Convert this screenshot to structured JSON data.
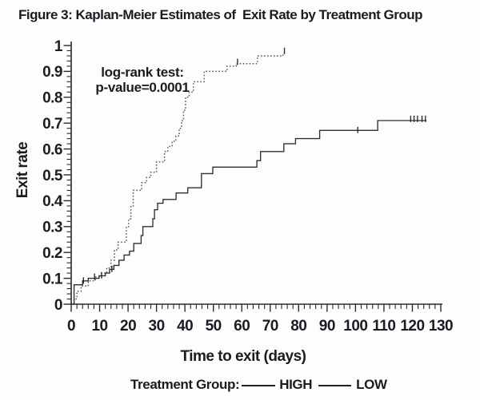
{
  "figure": {
    "title": "Figure 3: Kaplan-Meier Estimates of  Exit Rate by Treatment Group"
  },
  "annotation": {
    "line1": "log-rank test:",
    "line2": "p-value=0.0001"
  },
  "legend": {
    "label": "Treatment Group:",
    "items": [
      {
        "name": "HIGH"
      },
      {
        "name": "LOW"
      }
    ]
  },
  "colors": {
    "text": "#1b1b24",
    "axis": "#2a2a2e",
    "high_curve": "#585858",
    "low_curve": "#2e2e2e",
    "background": "#fdfdfd"
  },
  "chart_data": {
    "type": "line",
    "subtype": "kaplan-meier-step",
    "title": "Figure 3: Kaplan-Meier Estimates of Exit Rate by Treatment Group",
    "xlabel": "Time to exit (days)",
    "ylabel": "Exit rate",
    "xlim": [
      0,
      130
    ],
    "ylim": [
      0,
      1
    ],
    "x_ticks": [
      0,
      10,
      20,
      30,
      40,
      50,
      60,
      70,
      80,
      90,
      100,
      110,
      120,
      130
    ],
    "y_ticks": [
      0,
      0.1,
      0.2,
      0.3,
      0.4,
      0.5,
      0.6,
      0.7,
      0.8,
      0.9,
      1
    ],
    "x_minor_step": 2,
    "y_minor_step": 0.02,
    "grid": false,
    "legend_position": "bottom",
    "annotation": "log-rank test: p-value=0.0001",
    "series": [
      {
        "name": "HIGH",
        "style": "dotted",
        "points": [
          [
            0,
            0
          ],
          [
            1,
            0.02
          ],
          [
            2,
            0.05
          ],
          [
            3.5,
            0.07
          ],
          [
            6,
            0.09
          ],
          [
            8.5,
            0.105
          ],
          [
            10.5,
            0.12
          ],
          [
            12.5,
            0.14
          ],
          [
            14,
            0.17
          ],
          [
            15.2,
            0.21
          ],
          [
            16.5,
            0.24
          ],
          [
            19.4,
            0.3
          ],
          [
            20.2,
            0.33
          ],
          [
            21,
            0.38
          ],
          [
            21.8,
            0.44
          ],
          [
            24.8,
            0.47
          ],
          [
            26.5,
            0.49
          ],
          [
            28,
            0.51
          ],
          [
            30,
            0.55
          ],
          [
            32.8,
            0.59
          ],
          [
            34,
            0.61
          ],
          [
            35.5,
            0.63
          ],
          [
            36.8,
            0.65
          ],
          [
            38,
            0.68
          ],
          [
            38.8,
            0.71
          ],
          [
            39.5,
            0.75
          ],
          [
            40.2,
            0.8
          ],
          [
            41.5,
            0.82
          ],
          [
            43,
            0.86
          ],
          [
            46.8,
            0.9
          ],
          [
            54.8,
            0.92
          ],
          [
            58,
            0.93
          ],
          [
            65.5,
            0.96
          ],
          [
            74.5,
            0.97
          ]
        ],
        "end_x": 75.5,
        "censor_marks": [
          [
            58.5,
            0.935
          ],
          [
            75,
            0.978
          ]
        ]
      },
      {
        "name": "LOW",
        "style": "solid",
        "points": [
          [
            0,
            0
          ],
          [
            1,
            0.075
          ],
          [
            4,
            0.09
          ],
          [
            6,
            0.1
          ],
          [
            9.8,
            0.11
          ],
          [
            12,
            0.12
          ],
          [
            13.5,
            0.135
          ],
          [
            15,
            0.15
          ],
          [
            16.8,
            0.17
          ],
          [
            18.6,
            0.19
          ],
          [
            20.5,
            0.205
          ],
          [
            22,
            0.235
          ],
          [
            24.6,
            0.265
          ],
          [
            25.2,
            0.3
          ],
          [
            28.7,
            0.33
          ],
          [
            29.3,
            0.365
          ],
          [
            30.4,
            0.39
          ],
          [
            32.3,
            0.405
          ],
          [
            36.9,
            0.43
          ],
          [
            41,
            0.45
          ],
          [
            45.8,
            0.505
          ],
          [
            49.8,
            0.53
          ],
          [
            65.3,
            0.555
          ],
          [
            66.6,
            0.59
          ],
          [
            74.8,
            0.62
          ],
          [
            78.9,
            0.64
          ],
          [
            87.4,
            0.672
          ],
          [
            107.8,
            0.71
          ]
        ],
        "end_x": 125,
        "censor_marks": [
          [
            4.3,
            0.09
          ],
          [
            8.2,
            0.105
          ],
          [
            10.7,
            0.11
          ],
          [
            14.3,
            0.135
          ],
          [
            100.8,
            0.672
          ],
          [
            119.4,
            0.715
          ],
          [
            120.6,
            0.715
          ],
          [
            121.8,
            0.715
          ],
          [
            123.4,
            0.715
          ],
          [
            124.6,
            0.715
          ]
        ]
      }
    ]
  }
}
